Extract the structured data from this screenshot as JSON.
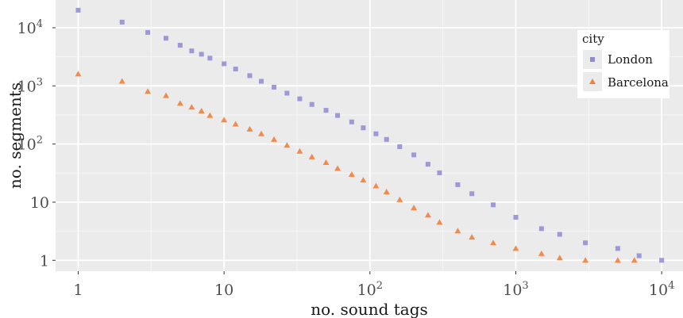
{
  "chart_data": {
    "type": "scatter",
    "title": "",
    "xlabel": "no. sound tags",
    "ylabel": "no. segments",
    "x_scale": "log10",
    "y_scale": "log10",
    "xlim": [
      0.7,
      14000
    ],
    "ylim": [
      0.65,
      30000
    ],
    "x_ticks": [
      {
        "value": 1,
        "base": "1",
        "exp": ""
      },
      {
        "value": 10,
        "base": "10",
        "exp": ""
      },
      {
        "value": 100,
        "base": "10",
        "exp": "2"
      },
      {
        "value": 1000,
        "base": "10",
        "exp": "3"
      },
      {
        "value": 10000,
        "base": "10",
        "exp": "4"
      }
    ],
    "y_ticks": [
      {
        "value": 1,
        "base": "1",
        "exp": ""
      },
      {
        "value": 10,
        "base": "10",
        "exp": ""
      },
      {
        "value": 100,
        "base": "10",
        "exp": "2"
      },
      {
        "value": 1000,
        "base": "10",
        "exp": "3"
      },
      {
        "value": 10000,
        "base": "10",
        "exp": "4"
      }
    ],
    "grid": true,
    "legend": {
      "title": "city",
      "position": "top-right"
    },
    "series": [
      {
        "name": "London",
        "color": "#8f8ad2",
        "marker": "square",
        "points": [
          [
            1,
            20000
          ],
          [
            2,
            12500
          ],
          [
            3,
            8300
          ],
          [
            4,
            6600
          ],
          [
            5,
            5000
          ],
          [
            6,
            4000
          ],
          [
            7,
            3500
          ],
          [
            8,
            3000
          ],
          [
            10,
            2400
          ],
          [
            12,
            1950
          ],
          [
            15,
            1500
          ],
          [
            18,
            1200
          ],
          [
            22,
            950
          ],
          [
            27,
            750
          ],
          [
            33,
            600
          ],
          [
            40,
            480
          ],
          [
            50,
            380
          ],
          [
            60,
            310
          ],
          [
            75,
            240
          ],
          [
            90,
            190
          ],
          [
            110,
            150
          ],
          [
            130,
            120
          ],
          [
            160,
            90
          ],
          [
            200,
            65
          ],
          [
            250,
            45
          ],
          [
            300,
            32
          ],
          [
            400,
            20
          ],
          [
            500,
            14
          ],
          [
            700,
            9
          ],
          [
            1000,
            5.5
          ],
          [
            1500,
            3.5
          ],
          [
            2000,
            2.8
          ],
          [
            3000,
            2
          ],
          [
            5000,
            1.6
          ],
          [
            7000,
            1.2
          ],
          [
            10000,
            1
          ]
        ]
      },
      {
        "name": "Barcelona",
        "color": "#f2813c",
        "marker": "triangle",
        "points": [
          [
            1,
            1600
          ],
          [
            2,
            1200
          ],
          [
            3,
            800
          ],
          [
            4,
            680
          ],
          [
            5,
            500
          ],
          [
            6,
            430
          ],
          [
            7,
            370
          ],
          [
            8,
            310
          ],
          [
            10,
            260
          ],
          [
            12,
            220
          ],
          [
            15,
            180
          ],
          [
            18,
            150
          ],
          [
            22,
            120
          ],
          [
            27,
            95
          ],
          [
            33,
            75
          ],
          [
            40,
            60
          ],
          [
            50,
            48
          ],
          [
            60,
            38
          ],
          [
            75,
            30
          ],
          [
            90,
            24
          ],
          [
            110,
            19
          ],
          [
            130,
            15
          ],
          [
            160,
            11
          ],
          [
            200,
            8
          ],
          [
            250,
            6
          ],
          [
            300,
            4.5
          ],
          [
            400,
            3.2
          ],
          [
            500,
            2.5
          ],
          [
            700,
            2
          ],
          [
            1000,
            1.6
          ],
          [
            1500,
            1.3
          ],
          [
            2000,
            1.1
          ],
          [
            3000,
            1
          ],
          [
            5000,
            1
          ],
          [
            6500,
            1
          ]
        ]
      }
    ]
  }
}
